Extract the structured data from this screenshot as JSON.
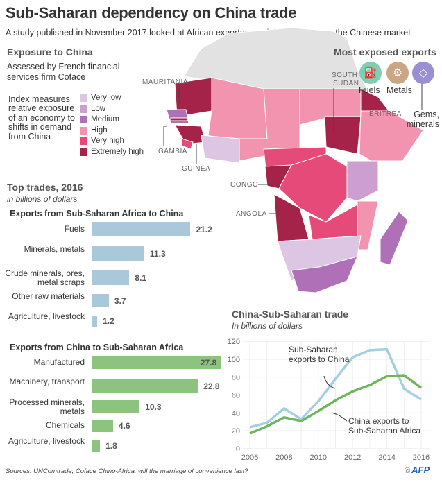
{
  "header": {
    "title": "Sub-Saharan dependency on China trade",
    "subtitle": "A study published in November 2017 looked at African exporters and their reliance on the Chinese market"
  },
  "exposure": {
    "heading": "Exposure to China",
    "description": "Assessed by French financial services firm Coface",
    "index_note": "Index measures relative exposure of an economy to shifts in demand from China",
    "legend": [
      {
        "label": "Very low",
        "color": "#ddc6e4"
      },
      {
        "label": "Low",
        "color": "#cc9fd0"
      },
      {
        "label": "Medium",
        "color": "#b070b8"
      },
      {
        "label": "High",
        "color": "#f293b0"
      },
      {
        "label": "Very high",
        "color": "#e54a78"
      },
      {
        "label": "Extremely high",
        "color": "#a52348"
      }
    ]
  },
  "map": {
    "labels": {
      "mauritania": "MAURITANIA",
      "south_sudan_1": "SOUTH",
      "south_sudan_2": "SUDAN",
      "eritrea": "ERITREA",
      "gambia": "GAMBIA",
      "guinea": "GUINEA",
      "congo": "CONGO",
      "angola": "ANGOLA"
    },
    "no_data_color": "#e2e2e2"
  },
  "most_exposed": {
    "heading": "Most exposed exports",
    "items": [
      {
        "label": "Fuels",
        "icon": "oil-pump-icon",
        "color": "#7ecfb0"
      },
      {
        "label": "Metals",
        "icon": "gears-icon",
        "color": "#c9a784"
      },
      {
        "label": "Gems, minerals",
        "icon": "diamond-icon",
        "color": "#9b8fd3"
      }
    ]
  },
  "top_trades": {
    "heading": "Top trades, 2016",
    "unit": "in billions of dollars"
  },
  "chart_data": [
    {
      "type": "bar",
      "title": "Exports from Sub-Saharan Africa to China",
      "categories": [
        "Fuels",
        "Minerals, metals",
        "Crude minerals, ores, metal scraps",
        "Other raw materials",
        "Agriculture, livestock"
      ],
      "values": [
        21.2,
        11.3,
        8.1,
        3.7,
        1.2
      ],
      "labels": [
        "21.2",
        "11.3",
        "8.1",
        "3.7",
        "1.2"
      ],
      "color": "#a9c8d9",
      "unit": "billions of dollars"
    },
    {
      "type": "bar",
      "title": "Exports from China to Sub-Saharan Africa",
      "categories": [
        "Manufactured",
        "Machinery, transport",
        "Processed minerals, metals",
        "Chemicals",
        "Agriculture, livestock"
      ],
      "values": [
        27.8,
        22.8,
        10.3,
        4.6,
        1.8
      ],
      "labels": [
        "27.8",
        "22.8",
        "10.3",
        "4.6",
        "1.8"
      ],
      "color": "#8cc47f",
      "unit": "billions of dollars"
    },
    {
      "type": "line",
      "title": "China-Sub-Saharan trade",
      "subtitle": "In billions of dollars",
      "x": [
        2006,
        2007,
        2008,
        2009,
        2010,
        2011,
        2012,
        2013,
        2014,
        2015,
        2016
      ],
      "xticks": [
        "2006",
        "2008",
        "2010",
        "2012",
        "2014",
        "2016"
      ],
      "yticks": [
        "0",
        "20",
        "40",
        "60",
        "80",
        "100",
        "120"
      ],
      "ylim": [
        0,
        120
      ],
      "grid": true,
      "series": [
        {
          "name": "Sub-Saharan exports to China",
          "values": [
            24,
            29,
            45,
            33,
            53,
            78,
            102,
            110,
            111,
            67,
            55
          ],
          "color": "#a3cfe0"
        },
        {
          "name": "China exports to Sub-Saharan Africa",
          "values": [
            17,
            25,
            35,
            31,
            42,
            54,
            64,
            71,
            81,
            82,
            68
          ],
          "color": "#6fb55e"
        }
      ],
      "annotations": {
        "s1_line1": "Sub-Saharan",
        "s1_line2": "exports to China",
        "s2_line1": "China exports to",
        "s2_line2": "Sub-Saharan Africa"
      }
    }
  ],
  "footer": {
    "sources": "Sources: UNComtrade, Coface Chino-Africa: will the marriage of convenience last?",
    "copyright": "©",
    "credit": "AFP"
  }
}
